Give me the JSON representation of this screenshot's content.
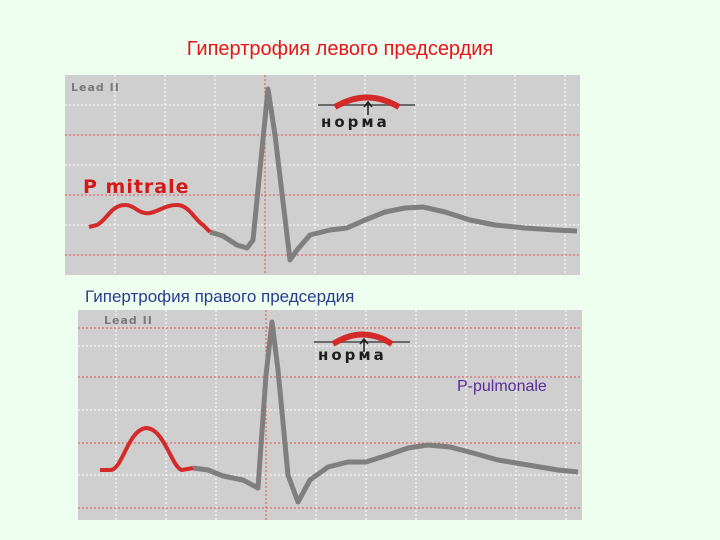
{
  "title": "Гипертрофия левого предсердия",
  "subtitle": "Гипертрофия правого предсердия",
  "panel_top": {
    "lead_label": "Lead II",
    "norm_label": "норма",
    "p_wave_label": "P mitrale"
  },
  "panel_bottom": {
    "lead_label": "Lead II",
    "norm_label": "норма",
    "p_wave_label": "P-pulmonale"
  },
  "colors": {
    "background": "#eefff0",
    "panel": "#cfcfcf",
    "ecg_trace": "#7f7f7f",
    "p_wave": "#d42a2a",
    "grid_dotted": "#e05050",
    "title_red": "#e8141b",
    "subtitle_blue": "#2a3b8f",
    "label_purple": "#5a2c9a"
  }
}
